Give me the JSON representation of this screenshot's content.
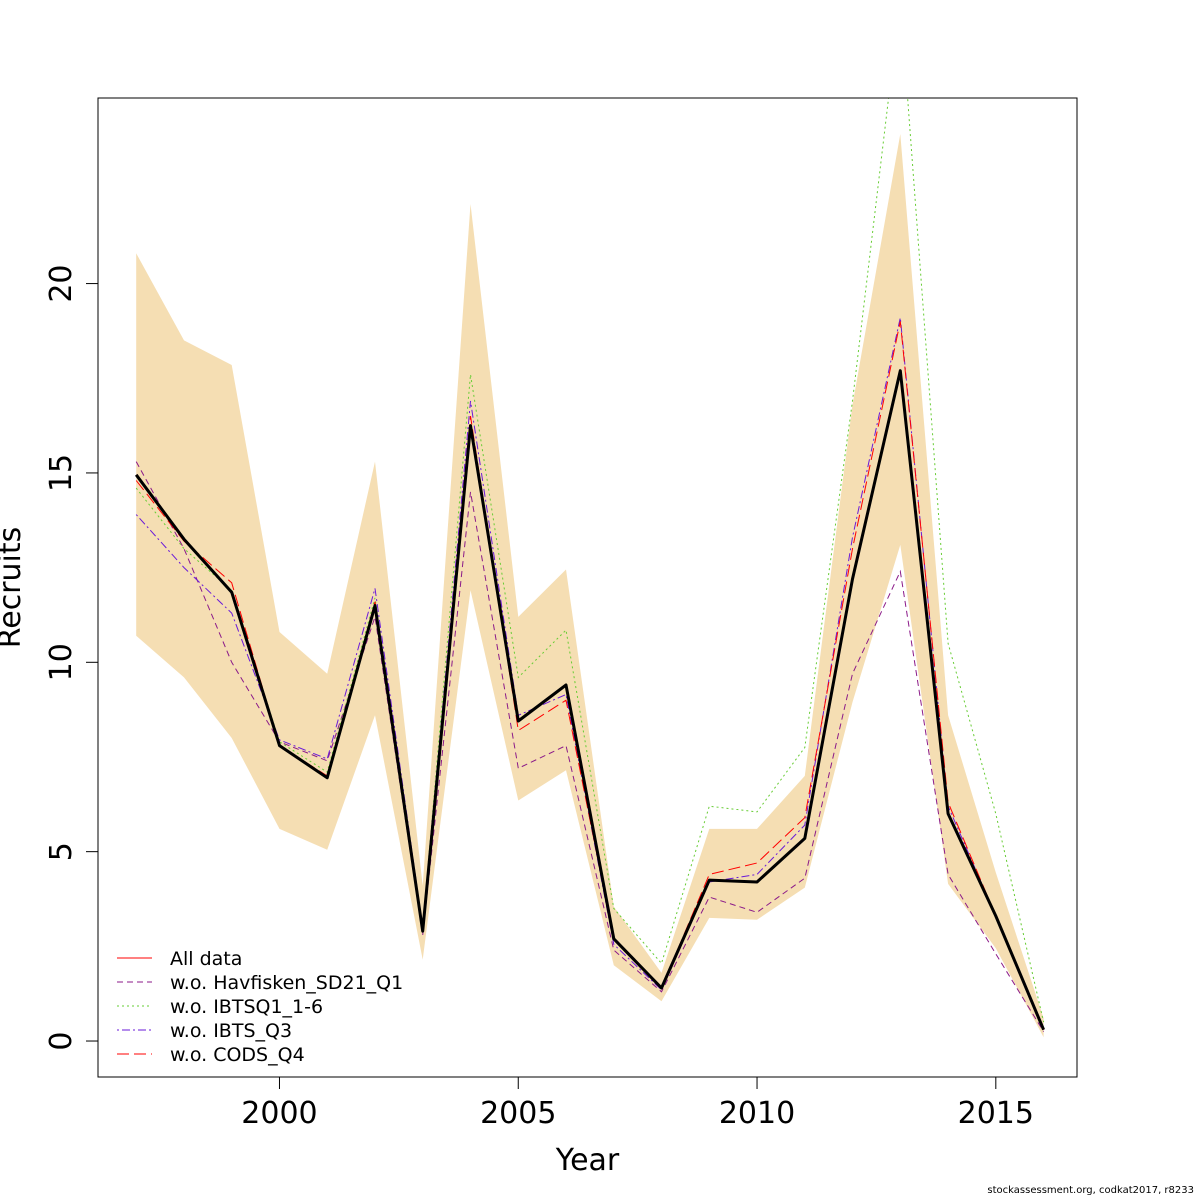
{
  "chart_data": {
    "type": "line",
    "xlabel": "Year",
    "ylabel": "Recruits",
    "xlim": [
      1996.2,
      2016.7
    ],
    "ylim": [
      -0.95,
      24.9
    ],
    "xticks": [
      2000,
      2005,
      2010,
      2015
    ],
    "yticks": [
      0,
      5,
      10,
      15,
      20
    ],
    "grid": false,
    "legend_position": "bottom-left",
    "x": [
      1997,
      1998,
      1999,
      2000,
      2001,
      2002,
      2003,
      2004,
      2005,
      2006,
      2007,
      2008,
      2009,
      2010,
      2011,
      2012,
      2013,
      2014,
      2015,
      2016
    ],
    "confidence_band": {
      "color": "#f5deb3",
      "lower": [
        10.7,
        9.6,
        8.0,
        5.6,
        5.05,
        8.6,
        2.15,
        11.9,
        6.35,
        7.15,
        2.0,
        1.05,
        3.25,
        3.2,
        4.05,
        8.95,
        13.1,
        4.15,
        2.45,
        0.1
      ],
      "upper": [
        20.8,
        18.5,
        17.85,
        10.8,
        9.7,
        15.3,
        4.1,
        22.1,
        11.2,
        12.45,
        3.55,
        1.8,
        5.6,
        5.6,
        7.0,
        16.8,
        23.95,
        8.6,
        4.45,
        0.6
      ]
    },
    "series": [
      {
        "name": "All data",
        "color": "#ff0000",
        "linestyle": "solid",
        "values": [
          14.95,
          13.25,
          11.85,
          7.8,
          6.95,
          11.5,
          2.9,
          16.25,
          8.45,
          9.4,
          2.7,
          1.4,
          4.25,
          4.2,
          5.35,
          12.2,
          17.7,
          6.0,
          3.3,
          0.3
        ]
      },
      {
        "name": "w.o. Havfisken_SD21_Q1",
        "color": "#8b1a89",
        "linestyle": "dashed",
        "values": [
          15.3,
          13.0,
          10.0,
          7.9,
          7.4,
          11.2,
          2.8,
          14.5,
          7.2,
          7.8,
          2.4,
          1.3,
          3.8,
          3.4,
          4.3,
          9.7,
          12.4,
          4.4,
          2.3,
          0.25
        ]
      },
      {
        "name": "w.o. IBTSQ1_1-6",
        "color": "#66cc33",
        "linestyle": "dotted",
        "values": [
          14.6,
          13.0,
          11.9,
          7.9,
          7.1,
          11.7,
          3.0,
          17.6,
          9.6,
          10.85,
          3.5,
          2.05,
          6.2,
          6.05,
          7.75,
          16.9,
          27.5,
          10.5,
          6.0,
          0.5
        ]
      },
      {
        "name": "w.o. IBTS_Q3",
        "color": "#6a1ad9",
        "linestyle": "dotdash",
        "values": [
          13.9,
          12.5,
          11.3,
          7.95,
          7.45,
          11.95,
          3.0,
          16.9,
          8.6,
          9.15,
          2.55,
          1.35,
          4.2,
          4.4,
          5.7,
          13.3,
          19.1,
          6.2,
          3.3,
          0.3
        ]
      },
      {
        "name": "w.o. CODS_Q4",
        "color": "#ff0000",
        "linestyle": "longdash",
        "values": [
          14.8,
          13.2,
          12.1,
          7.8,
          7.0,
          11.6,
          2.9,
          16.5,
          8.2,
          9.0,
          2.7,
          1.4,
          4.4,
          4.7,
          5.9,
          13.0,
          19.0,
          6.3,
          3.3,
          0.3
        ]
      }
    ],
    "main_line": {
      "color": "#000000",
      "values": [
        14.95,
        13.25,
        11.85,
        7.8,
        6.95,
        11.5,
        2.9,
        16.25,
        8.45,
        9.4,
        2.7,
        1.4,
        4.25,
        4.2,
        5.35,
        12.2,
        17.7,
        6.0,
        3.3,
        0.3
      ]
    }
  },
  "footer": {
    "text": "stockassessment.org, codkat2017, r8233"
  }
}
